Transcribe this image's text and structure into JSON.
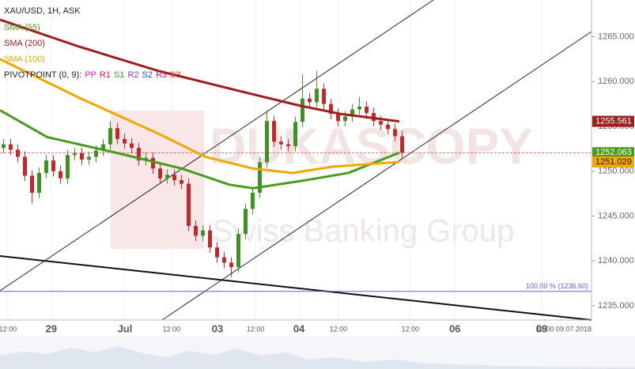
{
  "chart_data": {
    "type": "candlestick",
    "title": "XAU/USD, 1H, ASK",
    "xlim": [
      0,
      166.2
    ],
    "ylim": [
      1233.4,
      1269.1
    ],
    "xticks": [
      {
        "value": 2.2,
        "label": "12:00"
      },
      {
        "value": 14.4,
        "label": "29"
      },
      {
        "value": 35.1,
        "label": "Jul"
      },
      {
        "value": 48.2,
        "label": "12:00"
      },
      {
        "value": 61.1,
        "label": "03"
      },
      {
        "value": 71.8,
        "label": "12:00"
      },
      {
        "value": 84,
        "label": "04"
      },
      {
        "value": 95.1,
        "label": "12:00"
      },
      {
        "value": 115.3,
        "label": "12:00"
      },
      {
        "value": 127.8,
        "label": "06"
      },
      {
        "value": 152.2,
        "label": "09"
      },
      {
        "value": 166.2,
        "label": "12:00 09.07.2018"
      }
    ],
    "yticks": [
      {
        "value": 1235,
        "label": "1235.000"
      },
      {
        "value": 1240,
        "label": "1240.000"
      },
      {
        "value": 1245,
        "label": "1245.000"
      },
      {
        "value": 1250,
        "label": "1250.000"
      },
      {
        "value": 1255,
        "label": "1255.000"
      },
      {
        "value": 1260,
        "label": "1260.000"
      },
      {
        "value": 1265,
        "label": "1265.000"
      }
    ],
    "grid": true,
    "up_color": "#3f8f24",
    "down_color": "#c0282d",
    "x": [
      1,
      3,
      5,
      7,
      9,
      11,
      13,
      15,
      17,
      19,
      21,
      23,
      25,
      27,
      29,
      31,
      33,
      35,
      37,
      39,
      41,
      43,
      45,
      47,
      49,
      51,
      53,
      55,
      57,
      59,
      61,
      63,
      65,
      67,
      69,
      71,
      73,
      75,
      77,
      79,
      81,
      83,
      85,
      87,
      89,
      91,
      93,
      95,
      97,
      99,
      101,
      103,
      105,
      107,
      109,
      111,
      113
    ],
    "open": [
      1252.6,
      1253.0,
      1252.4,
      1251.6,
      1249.5,
      1247.6,
      1249.8,
      1251.2,
      1250.0,
      1249.2,
      1251.8,
      1252.0,
      1251.3,
      1251.6,
      1252.3,
      1253.0,
      1254.8,
      1253.6,
      1253.1,
      1252.6,
      1251.2,
      1251.5,
      1250.3,
      1249.2,
      1249.6,
      1249.0,
      1248.6,
      1243.9,
      1242.8,
      1243.4,
      1241.5,
      1240.4,
      1239.8,
      1239.3,
      1243.0,
      1245.8,
      1247.6,
      1251.0,
      1255.6,
      1253.3,
      1253.0,
      1252.8,
      1255.5,
      1258.1,
      1257.7,
      1259.2,
      1257.5,
      1256.4,
      1255.6,
      1256.1,
      1256.9,
      1257.2,
      1256.5,
      1255.6,
      1255.2,
      1254.7,
      1253.9
    ],
    "high": [
      1253.6,
      1253.6,
      1253.0,
      1252.2,
      1250.1,
      1250.4,
      1251.8,
      1251.8,
      1250.6,
      1252.4,
      1252.6,
      1252.6,
      1252.2,
      1252.9,
      1253.6,
      1255.6,
      1255.4,
      1254.2,
      1253.7,
      1253.2,
      1252.1,
      1252.1,
      1250.9,
      1250.2,
      1250.2,
      1249.6,
      1249.2,
      1244.5,
      1244.0,
      1244.0,
      1242.1,
      1241.0,
      1240.4,
      1243.6,
      1246.4,
      1248.2,
      1251.6,
      1256.8,
      1256.2,
      1253.9,
      1253.6,
      1256.1,
      1260.8,
      1258.7,
      1261.2,
      1259.8,
      1258.1,
      1257.0,
      1256.7,
      1257.5,
      1258.3,
      1257.8,
      1257.1,
      1256.2,
      1255.8,
      1255.3,
      1254.5
    ],
    "low": [
      1252.0,
      1251.8,
      1251.0,
      1248.9,
      1246.4,
      1247.0,
      1249.2,
      1249.4,
      1248.6,
      1248.6,
      1251.2,
      1250.7,
      1250.7,
      1251.0,
      1251.7,
      1252.4,
      1253.0,
      1252.5,
      1252.0,
      1250.6,
      1250.6,
      1249.7,
      1248.6,
      1248.6,
      1248.4,
      1248.0,
      1243.3,
      1242.2,
      1242.2,
      1240.9,
      1239.8,
      1239.2,
      1238.2,
      1238.7,
      1242.4,
      1245.2,
      1247.0,
      1250.4,
      1252.7,
      1252.4,
      1252.2,
      1252.2,
      1254.9,
      1257.1,
      1257.1,
      1256.9,
      1255.8,
      1255.0,
      1255.0,
      1255.5,
      1256.3,
      1255.9,
      1255.0,
      1254.6,
      1254.1,
      1253.3,
      1251.5
    ],
    "close": [
      1253.0,
      1252.4,
      1251.6,
      1249.5,
      1247.6,
      1249.8,
      1251.2,
      1250.0,
      1249.2,
      1251.8,
      1252.0,
      1251.3,
      1251.6,
      1252.3,
      1253.0,
      1254.8,
      1253.6,
      1253.1,
      1252.6,
      1251.2,
      1251.5,
      1250.3,
      1249.2,
      1249.6,
      1249.0,
      1248.6,
      1243.9,
      1242.8,
      1243.4,
      1241.5,
      1240.4,
      1239.8,
      1239.3,
      1243.0,
      1245.8,
      1247.6,
      1251.0,
      1255.6,
      1253.3,
      1253.0,
      1252.8,
      1255.5,
      1258.1,
      1257.7,
      1259.2,
      1257.5,
      1256.4,
      1255.6,
      1256.1,
      1256.9,
      1257.2,
      1256.5,
      1255.6,
      1255.2,
      1254.7,
      1253.9,
      1252.063
    ],
    "series": [
      {
        "name": "SMA (55)",
        "color": "#4c9a1c",
        "x": [
          0,
          13.3,
          33.3,
          51.1,
          64.4,
          71.1,
          84.4,
          97.8,
          112.2
        ],
        "values": [
          1256.8,
          1253.8,
          1252.0,
          1250.3,
          1248.5,
          1248.1,
          1248.9,
          1249.8,
          1252.063
        ]
      },
      {
        "name": "SMA (200)",
        "color": "#a01c1c",
        "x": [
          0,
          22.2,
          44.4,
          66.7,
          84.4,
          95.6,
          112.2
        ],
        "values": [
          1266.9,
          1263.9,
          1261.2,
          1259.0,
          1257.3,
          1256.4,
          1255.561
        ]
      },
      {
        "name": "SMA (100)",
        "color": "#f5a500",
        "x": [
          0,
          22.2,
          44.4,
          57.8,
          71.1,
          82.2,
          93.3,
          112.2
        ],
        "values": [
          1262.5,
          1258.2,
          1254.2,
          1251.6,
          1250.3,
          1249.8,
          1250.5,
          1251.029
        ]
      }
    ],
    "pivot_title": "PIVOTPOINT (0, 9):",
    "pivot_items": [
      {
        "label": "PP",
        "color": "#e020d0"
      },
      {
        "label": "R1",
        "color": "#d02020"
      },
      {
        "label": "S1",
        "color": "#30a030"
      },
      {
        "label": "R2",
        "color": "#9030c0"
      },
      {
        "label": "S2",
        "color": "#2050d0"
      },
      {
        "label": "R3",
        "color": "#c02060"
      },
      {
        "label": "S3",
        "color": "#e03030"
      }
    ],
    "annotation": {
      "value": 1236.6,
      "label": "100.00 % (1236.60)"
    },
    "watermark": "DUKASCOPY",
    "watermark_sub": "Swiss Banking Group"
  }
}
